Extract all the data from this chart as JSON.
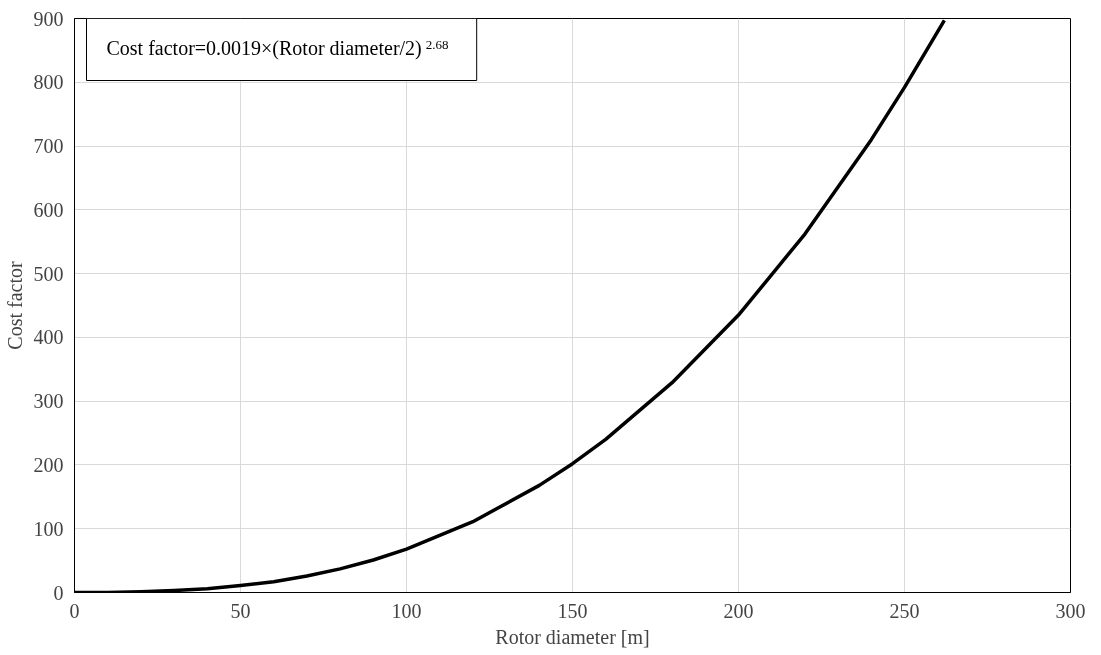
{
  "chart_data": {
    "type": "line",
    "xlabel": "Rotor diameter [m]",
    "ylabel": "Cost factor",
    "annotations": [
      "Cost factor=0.0019×(Rotor diameter/2)$^{2.68}$"
    ],
    "series": [
      {
        "color": "#000000",
        "x": [
          0,
          10,
          20,
          30,
          40,
          50,
          60,
          70,
          80,
          90,
          100,
          120,
          140,
          150,
          160,
          180,
          200,
          220,
          240,
          250,
          262
        ],
        "values": [
          0,
          0,
          1,
          3,
          6,
          11,
          17,
          26,
          37,
          51,
          68,
          111,
          168,
          202,
          240,
          329,
          435,
          562,
          710,
          792,
          897
        ]
      }
    ],
    "xlim": [
      0,
      300
    ],
    "xticks": [
      0,
      50,
      100,
      150,
      200,
      250,
      300
    ],
    "ylim": [
      0,
      900
    ],
    "yticks": [
      0,
      100,
      200,
      300,
      400,
      500,
      600,
      700,
      800,
      900
    ],
    "grid": true,
    "marker": "none",
    "line_style": "solid"
  }
}
